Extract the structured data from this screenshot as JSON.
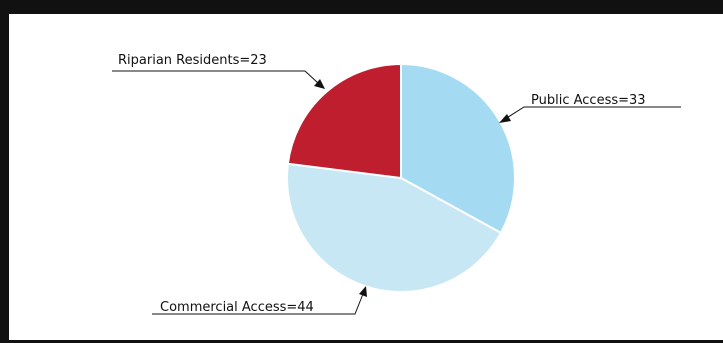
{
  "chart_data": {
    "type": "pie",
    "slices": [
      {
        "label": "Public Access",
        "value": 33,
        "color": "#a5dbf2"
      },
      {
        "label": "Commercial Access",
        "value": 44,
        "color": "#c8e7f5"
      },
      {
        "label": "Riparian Residents",
        "value": 23,
        "color": "#be1e2d"
      }
    ],
    "label_texts": [
      "Public Access=33",
      "Commercial Access=44",
      "Riparian Residents=23"
    ],
    "slice_edge_color": "#ffffff",
    "frame_color": "#111111"
  }
}
